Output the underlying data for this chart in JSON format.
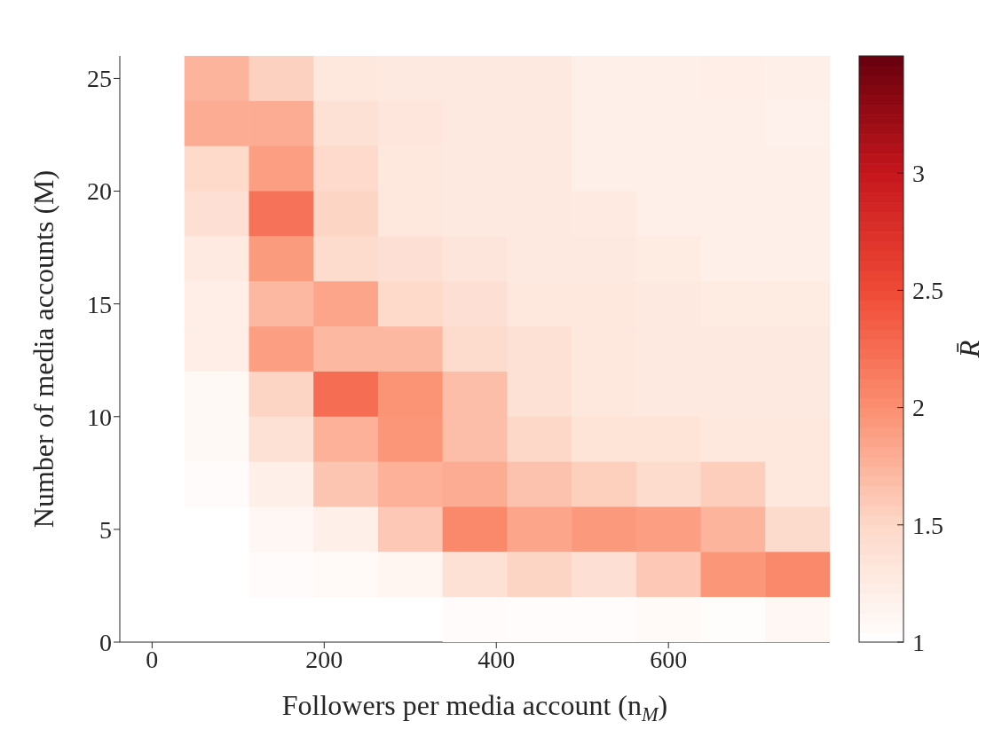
{
  "chart_data": {
    "type": "heatmap",
    "xlabel": "Followers per media account (n$_{M}$)",
    "ylabel": "Number of media accounts (M)",
    "clabel": "R̄",
    "x": [
      0,
      75,
      150,
      225,
      300,
      375,
      450,
      525,
      600,
      675,
      750
    ],
    "y": [
      25,
      23,
      21,
      19,
      17,
      15,
      13,
      11,
      9,
      7,
      5,
      3,
      1
    ],
    "cells": [
      [
        null,
        1.75,
        1.55,
        1.3,
        1.28,
        1.28,
        1.28,
        1.2,
        1.2,
        1.22,
        1.2
      ],
      [
        null,
        1.8,
        1.8,
        1.38,
        1.32,
        1.28,
        1.28,
        1.2,
        1.2,
        1.2,
        1.18
      ],
      [
        null,
        1.48,
        1.9,
        1.47,
        1.3,
        1.28,
        1.28,
        1.2,
        1.2,
        1.2,
        1.2
      ],
      [
        null,
        1.4,
        2.2,
        1.52,
        1.3,
        1.28,
        1.28,
        1.27,
        1.2,
        1.2,
        1.2
      ],
      [
        null,
        1.27,
        1.92,
        1.45,
        1.4,
        1.33,
        1.28,
        1.28,
        1.26,
        1.2,
        1.2
      ],
      [
        null,
        1.22,
        1.72,
        1.85,
        1.48,
        1.4,
        1.3,
        1.3,
        1.28,
        1.26,
        1.26
      ],
      [
        null,
        1.22,
        1.9,
        1.72,
        1.72,
        1.45,
        1.38,
        1.3,
        1.28,
        1.28,
        1.28
      ],
      [
        null,
        1.08,
        1.52,
        2.25,
        1.97,
        1.68,
        1.38,
        1.3,
        1.28,
        1.28,
        1.28
      ],
      [
        null,
        1.08,
        1.38,
        1.77,
        1.95,
        1.68,
        1.5,
        1.36,
        1.36,
        1.3,
        1.3
      ],
      [
        null,
        1.05,
        1.2,
        1.63,
        1.77,
        1.8,
        1.65,
        1.56,
        1.45,
        1.57,
        1.3
      ],
      [
        null,
        null,
        1.1,
        1.2,
        1.6,
        2.05,
        1.85,
        1.93,
        1.9,
        1.75,
        1.46
      ],
      [
        null,
        null,
        1.05,
        1.07,
        1.12,
        1.38,
        1.52,
        1.4,
        1.6,
        1.95,
        2.05
      ],
      [
        null,
        null,
        null,
        null,
        null,
        1.05,
        1.04,
        1.04,
        1.06,
        1.03,
        1.1
      ]
    ],
    "xlim": [
      -37.5,
      787.5
    ],
    "xticks": [
      0,
      200,
      400,
      600
    ],
    "ylim": [
      0,
      26
    ],
    "yticks": [
      0,
      5,
      10,
      15,
      20,
      25
    ],
    "clim": [
      1,
      3.5
    ],
    "cticks": [
      1,
      1.5,
      2,
      2.5,
      3
    ]
  }
}
